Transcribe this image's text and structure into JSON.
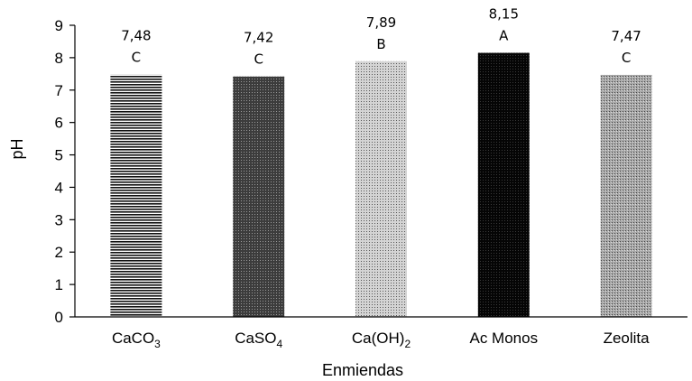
{
  "chart_data": {
    "type": "bar",
    "categories": [
      "CaCO3",
      "CaSO4",
      "Ca(OH)2",
      "Ac Monos",
      "Zeolita"
    ],
    "category_labels": [
      {
        "base": "CaCO",
        "sub": "3"
      },
      {
        "base": "CaSO",
        "sub": "4"
      },
      {
        "base": "Ca(OH)",
        "sub": "2"
      },
      {
        "base": "Ac Monos",
        "sub": ""
      },
      {
        "base": "Zeolita",
        "sub": ""
      }
    ],
    "values": [
      7.48,
      7.42,
      7.89,
      8.15,
      7.47
    ],
    "value_labels": [
      "7,48",
      "7,42",
      "7,89",
      "8,15",
      "7,47"
    ],
    "group_letters": [
      "C",
      "C",
      "B",
      "A",
      "C"
    ],
    "bar_fills": [
      "horizontal-lines",
      "dark-dots",
      "light-dots",
      "black-dots",
      "medium-dots"
    ],
    "title": "",
    "xlabel": "Enmiendas",
    "ylabel": "pH",
    "ylim": [
      0,
      9
    ],
    "yticks": [
      0,
      1,
      2,
      3,
      4,
      5,
      6,
      7,
      8,
      9
    ],
    "grid": false,
    "legend": "none"
  }
}
